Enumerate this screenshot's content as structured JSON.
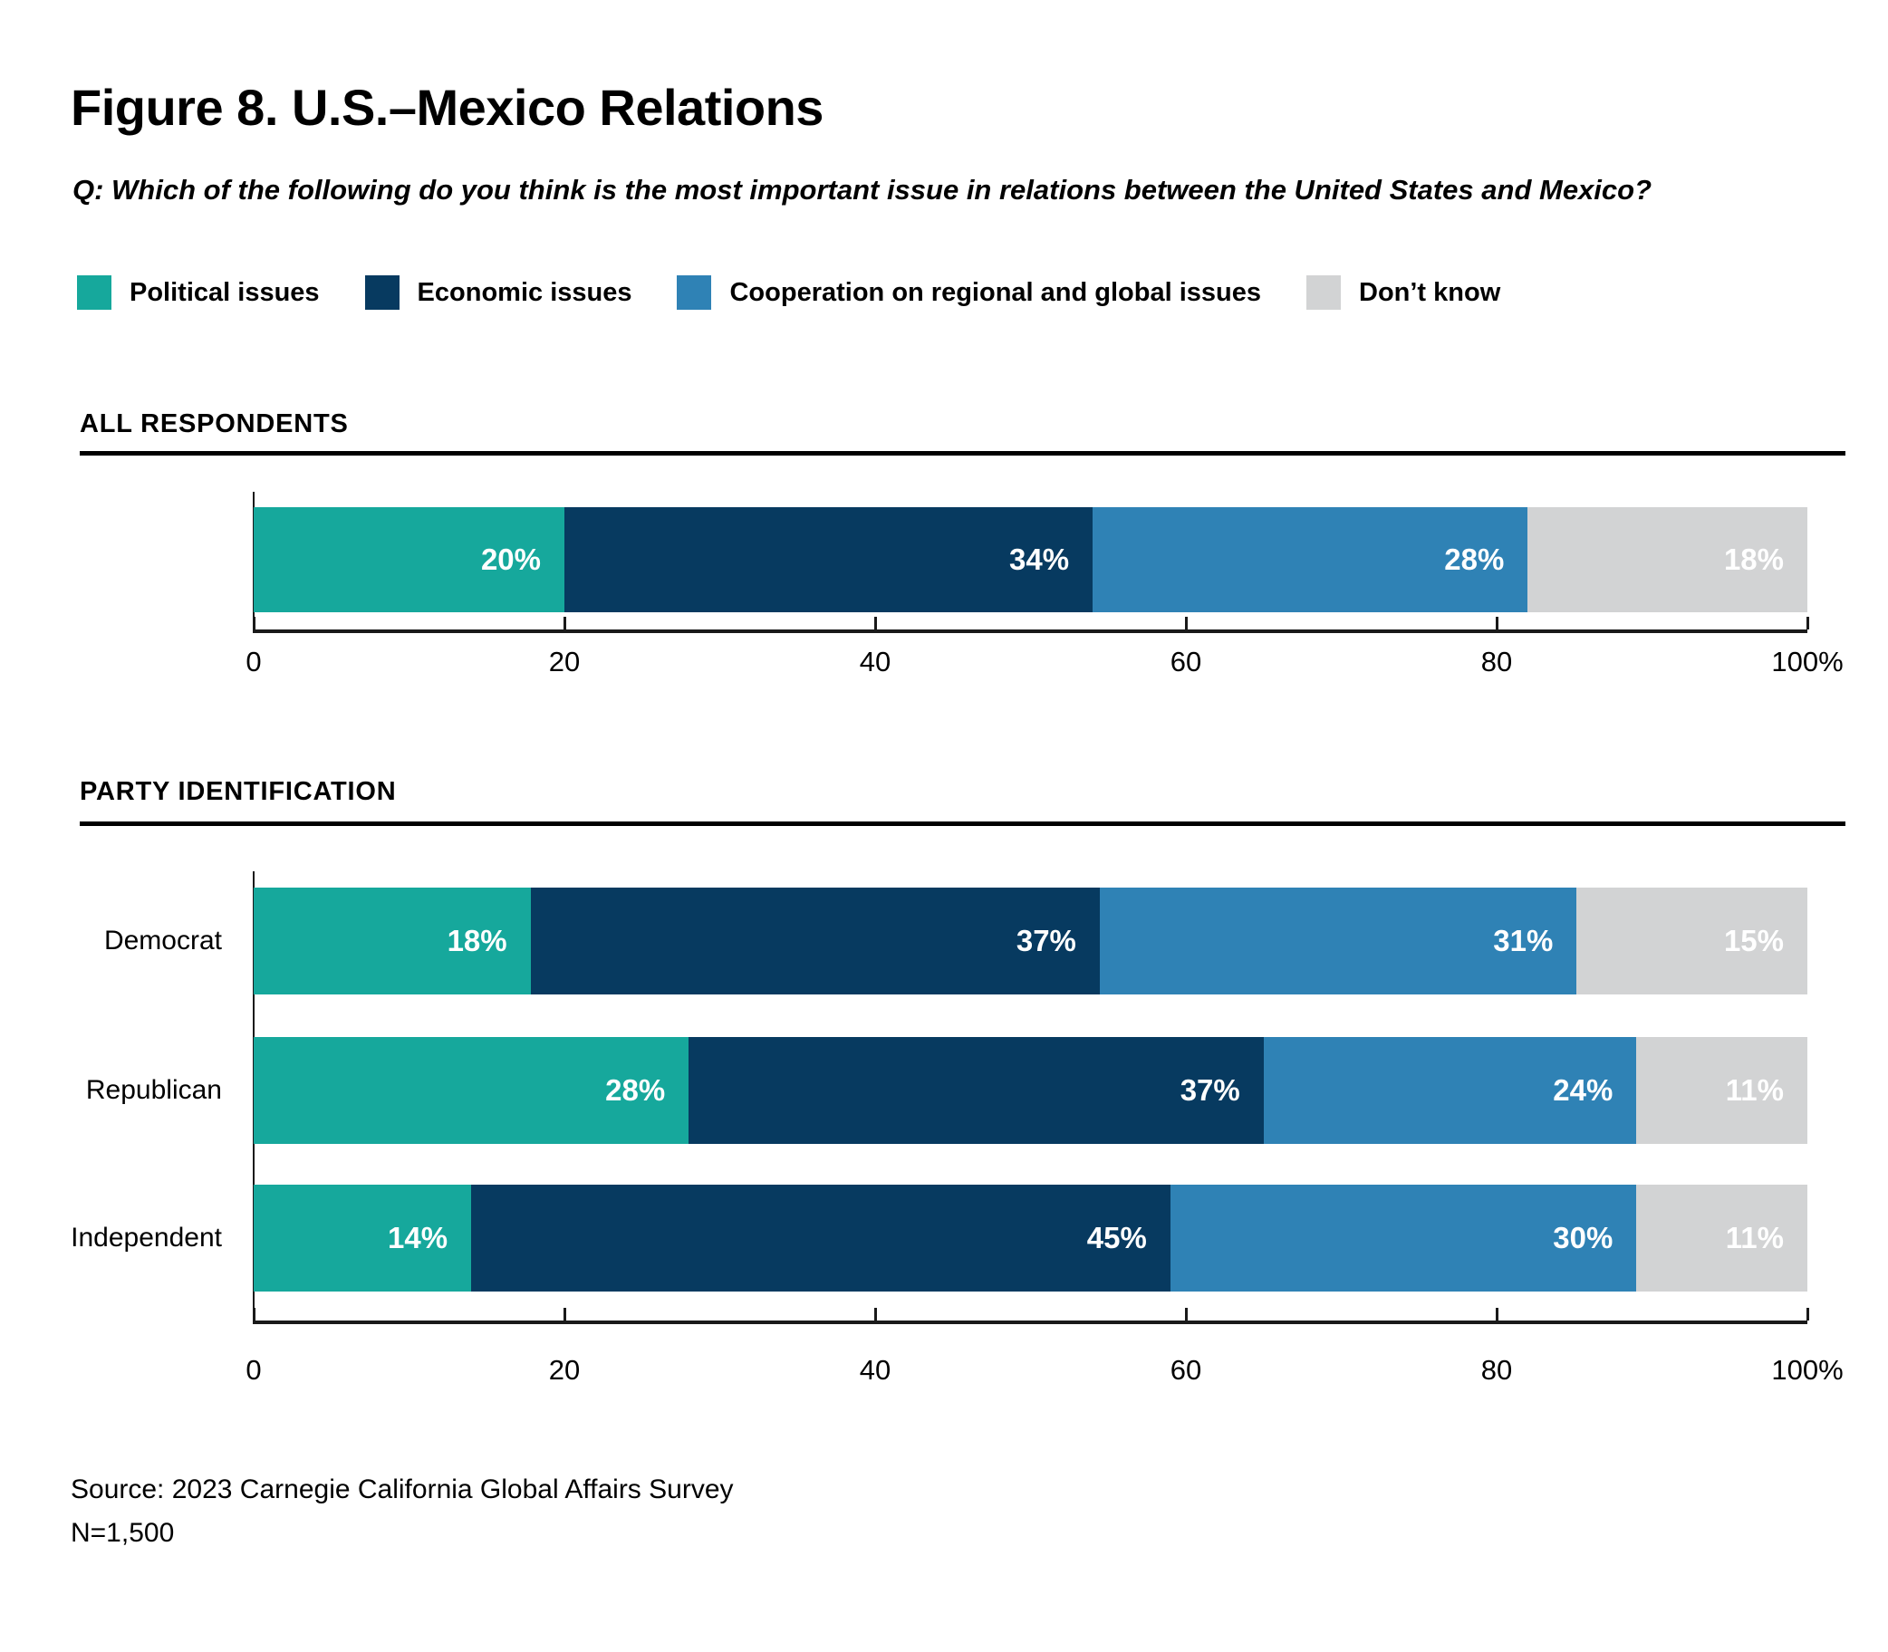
{
  "title": "Figure 8. U.S.–Mexico Relations",
  "question": "Q: Which of the following do you think is the most important issue in relations between the United States and Mexico?",
  "colors": {
    "political": "#16A89C",
    "economic": "#073A60",
    "cooperation": "#2F82B5",
    "dont_know": "#D2D3D4",
    "axis": "#1A1A1A"
  },
  "legend": [
    {
      "label": "Political issues",
      "color": "#16A89C"
    },
    {
      "label": "Economic issues",
      "color": "#073A60"
    },
    {
      "label": "Cooperation on regional and global issues",
      "color": "#2F82B5"
    },
    {
      "label": "Don’t know",
      "color": "#D2D3D4"
    }
  ],
  "sections": [
    {
      "label": "ALL RESPONDENTS"
    },
    {
      "label": "PARTY IDENTIFICATION"
    }
  ],
  "chart_data": [
    {
      "type": "bar",
      "stacked": true,
      "orientation": "horizontal",
      "title": "ALL RESPONDENTS",
      "categories": [
        ""
      ],
      "series": [
        {
          "name": "Political issues",
          "color": "#16A89C",
          "values": [
            20
          ]
        },
        {
          "name": "Economic issues",
          "color": "#073A60",
          "values": [
            34
          ]
        },
        {
          "name": "Cooperation on regional and global issues",
          "color": "#2F82B5",
          "values": [
            28
          ]
        },
        {
          "name": "Don’t know",
          "color": "#D2D3D4",
          "values": [
            18
          ]
        }
      ],
      "xlim": [
        0,
        100
      ],
      "xtick_labels": [
        "0",
        "20",
        "40",
        "60",
        "80",
        "100%"
      ],
      "xtick_values": [
        0,
        20,
        40,
        60,
        80,
        100
      ],
      "grid": false,
      "legend_position": "top",
      "value_suffix": "%"
    },
    {
      "type": "bar",
      "stacked": true,
      "orientation": "horizontal",
      "title": "PARTY IDENTIFICATION",
      "categories": [
        "Democrat",
        "Republican",
        "Independent"
      ],
      "series": [
        {
          "name": "Political issues",
          "color": "#16A89C",
          "values": [
            18,
            28,
            14
          ]
        },
        {
          "name": "Economic issues",
          "color": "#073A60",
          "values": [
            37,
            37,
            45
          ]
        },
        {
          "name": "Cooperation on regional and global issues",
          "color": "#2F82B5",
          "values": [
            31,
            24,
            30
          ]
        },
        {
          "name": "Don’t know",
          "color": "#D2D3D4",
          "values": [
            15,
            11,
            11
          ]
        }
      ],
      "xlim": [
        0,
        100
      ],
      "xtick_labels": [
        "0",
        "20",
        "40",
        "60",
        "80",
        "100%"
      ],
      "xtick_values": [
        0,
        20,
        40,
        60,
        80,
        100
      ],
      "grid": false,
      "value_suffix": "%"
    }
  ],
  "source": "Source: 2023 Carnegie California Global Affairs Survey",
  "sample_size": "N=1,500"
}
